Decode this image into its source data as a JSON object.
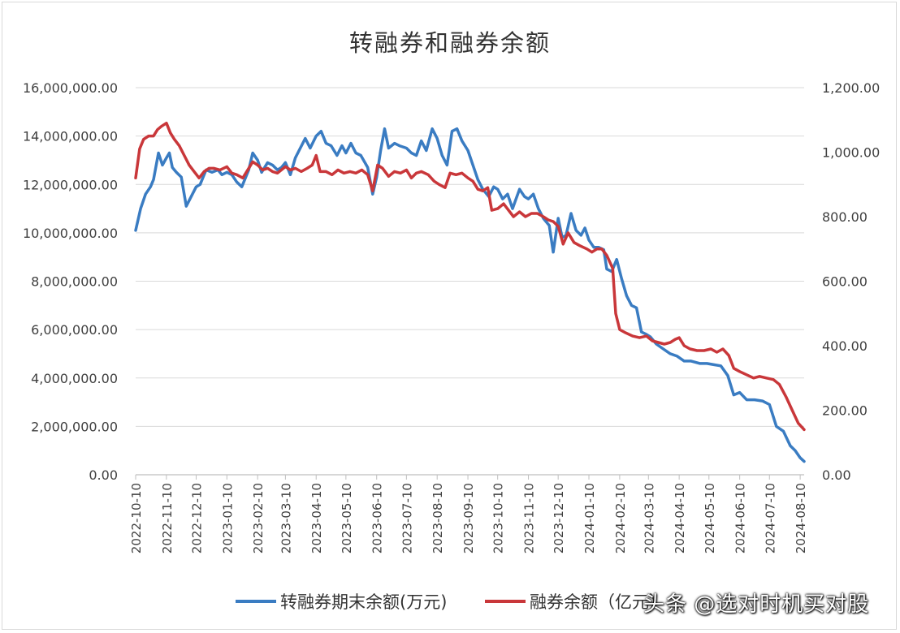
{
  "chart_data": {
    "type": "line",
    "title": "转融券和融券余额",
    "xlabel": "",
    "ylabel": "",
    "x_ticks": [
      "2022-10-10",
      "2022-11-10",
      "2022-12-10",
      "2023-01-10",
      "2023-02-10",
      "2023-03-10",
      "2023-04-10",
      "2023-05-10",
      "2023-06-10",
      "2023-07-10",
      "2023-08-10",
      "2023-09-10",
      "2023-10-10",
      "2023-11-10",
      "2023-12-10",
      "2024-01-10",
      "2024-02-10",
      "2024-03-10",
      "2024-04-10",
      "2024-05-10",
      "2024-06-10",
      "2024-07-10",
      "2024-08-10"
    ],
    "y_left": {
      "ylim": [
        0,
        16000000
      ],
      "ticks": [
        "0.00",
        "2,000,000.00",
        "4,000,000.00",
        "6,000,000.00",
        "8,000,000.00",
        "10,000,000.00",
        "12,000,000.00",
        "14,000,000.00",
        "16,000,000.00"
      ]
    },
    "y_right": {
      "ylim": [
        0,
        1200
      ],
      "ticks": [
        "0.00",
        "200.00",
        "400.00",
        "600.00",
        "800.00",
        "1,000.00",
        "1,200.00"
      ]
    },
    "grid": true,
    "legend_position": "bottom",
    "series": [
      {
        "name": "转融券期末余额(万元)",
        "axis": "left",
        "color": "#3a7cc2",
        "points": [
          [
            "2022-10-10",
            10100000
          ],
          [
            "2022-10-15",
            11000000
          ],
          [
            "2022-10-20",
            11600000
          ],
          [
            "2022-10-25",
            11900000
          ],
          [
            "2022-10-28",
            12200000
          ],
          [
            "2022-11-02",
            13300000
          ],
          [
            "2022-11-06",
            12800000
          ],
          [
            "2022-11-10",
            13100000
          ],
          [
            "2022-11-13",
            13300000
          ],
          [
            "2022-11-16",
            12700000
          ],
          [
            "2022-11-20",
            12500000
          ],
          [
            "2022-11-25",
            12300000
          ],
          [
            "2022-11-30",
            11100000
          ],
          [
            "2022-12-05",
            11500000
          ],
          [
            "2022-12-10",
            11900000
          ],
          [
            "2022-12-14",
            12000000
          ],
          [
            "2022-12-20",
            12600000
          ],
          [
            "2022-12-26",
            12500000
          ],
          [
            "2023-01-01",
            12600000
          ],
          [
            "2023-01-05",
            12400000
          ],
          [
            "2023-01-10",
            12500000
          ],
          [
            "2023-01-15",
            12400000
          ],
          [
            "2023-01-20",
            12100000
          ],
          [
            "2023-01-25",
            11900000
          ],
          [
            "2023-02-01",
            12600000
          ],
          [
            "2023-02-05",
            13300000
          ],
          [
            "2023-02-10",
            13000000
          ],
          [
            "2023-02-14",
            12500000
          ],
          [
            "2023-02-20",
            12900000
          ],
          [
            "2023-02-25",
            12800000
          ],
          [
            "2023-03-02",
            12600000
          ],
          [
            "2023-03-06",
            12700000
          ],
          [
            "2023-03-10",
            12900000
          ],
          [
            "2023-03-15",
            12400000
          ],
          [
            "2023-03-20",
            13100000
          ],
          [
            "2023-03-25",
            13500000
          ],
          [
            "2023-03-30",
            13900000
          ],
          [
            "2023-04-04",
            13500000
          ],
          [
            "2023-04-10",
            14000000
          ],
          [
            "2023-04-15",
            14200000
          ],
          [
            "2023-04-20",
            13700000
          ],
          [
            "2023-04-25",
            13600000
          ],
          [
            "2023-05-01",
            13200000
          ],
          [
            "2023-05-06",
            13600000
          ],
          [
            "2023-05-10",
            13300000
          ],
          [
            "2023-05-15",
            13700000
          ],
          [
            "2023-05-20",
            13300000
          ],
          [
            "2023-05-25",
            13200000
          ],
          [
            "2023-06-01",
            12700000
          ],
          [
            "2023-06-06",
            11600000
          ],
          [
            "2023-06-10",
            12300000
          ],
          [
            "2023-06-14",
            13400000
          ],
          [
            "2023-06-18",
            14300000
          ],
          [
            "2023-06-22",
            13500000
          ],
          [
            "2023-06-28",
            13700000
          ],
          [
            "2023-07-03",
            13600000
          ],
          [
            "2023-07-10",
            13500000
          ],
          [
            "2023-07-15",
            13300000
          ],
          [
            "2023-07-20",
            13200000
          ],
          [
            "2023-07-25",
            13800000
          ],
          [
            "2023-07-30",
            13400000
          ],
          [
            "2023-08-05",
            14300000
          ],
          [
            "2023-08-10",
            13900000
          ],
          [
            "2023-08-15",
            13200000
          ],
          [
            "2023-08-20",
            12800000
          ],
          [
            "2023-08-25",
            14200000
          ],
          [
            "2023-08-30",
            14300000
          ],
          [
            "2023-09-04",
            13800000
          ],
          [
            "2023-09-10",
            13400000
          ],
          [
            "2023-09-15",
            12800000
          ],
          [
            "2023-09-20",
            12200000
          ],
          [
            "2023-09-25",
            11800000
          ],
          [
            "2023-10-01",
            11500000
          ],
          [
            "2023-10-06",
            11900000
          ],
          [
            "2023-10-10",
            11800000
          ],
          [
            "2023-10-15",
            11400000
          ],
          [
            "2023-10-20",
            11600000
          ],
          [
            "2023-10-25",
            11000000
          ],
          [
            "2023-11-01",
            11800000
          ],
          [
            "2023-11-06",
            11500000
          ],
          [
            "2023-11-10",
            11400000
          ],
          [
            "2023-11-15",
            11600000
          ],
          [
            "2023-11-20",
            11000000
          ],
          [
            "2023-11-25",
            10600000
          ],
          [
            "2023-12-01",
            10300000
          ],
          [
            "2023-12-05",
            9200000
          ],
          [
            "2023-12-10",
            10600000
          ],
          [
            "2023-12-14",
            9800000
          ],
          [
            "2023-12-18",
            9900000
          ],
          [
            "2023-12-23",
            10800000
          ],
          [
            "2023-12-28",
            10100000
          ],
          [
            "2024-01-02",
            9900000
          ],
          [
            "2024-01-06",
            10200000
          ],
          [
            "2024-01-10",
            9700000
          ],
          [
            "2024-01-15",
            9400000
          ],
          [
            "2024-01-20",
            9400000
          ],
          [
            "2024-01-25",
            9300000
          ],
          [
            "2024-01-28",
            8500000
          ],
          [
            "2024-02-02",
            8400000
          ],
          [
            "2024-02-07",
            8900000
          ],
          [
            "2024-02-12",
            8100000
          ],
          [
            "2024-02-17",
            7400000
          ],
          [
            "2024-02-22",
            7000000
          ],
          [
            "2024-02-27",
            6900000
          ],
          [
            "2024-03-03",
            5900000
          ],
          [
            "2024-03-08",
            5800000
          ],
          [
            "2024-03-12",
            5700000
          ],
          [
            "2024-03-18",
            5400000
          ],
          [
            "2024-03-25",
            5200000
          ],
          [
            "2024-04-01",
            5000000
          ],
          [
            "2024-04-08",
            4900000
          ],
          [
            "2024-04-15",
            4700000
          ],
          [
            "2024-04-22",
            4700000
          ],
          [
            "2024-05-01",
            4600000
          ],
          [
            "2024-05-08",
            4600000
          ],
          [
            "2024-05-15",
            4550000
          ],
          [
            "2024-05-22",
            4500000
          ],
          [
            "2024-05-29",
            4100000
          ],
          [
            "2024-06-04",
            3300000
          ],
          [
            "2024-06-10",
            3400000
          ],
          [
            "2024-06-17",
            3100000
          ],
          [
            "2024-06-25",
            3100000
          ],
          [
            "2024-07-03",
            3050000
          ],
          [
            "2024-07-10",
            2900000
          ],
          [
            "2024-07-17",
            2000000
          ],
          [
            "2024-07-24",
            1800000
          ],
          [
            "2024-07-31",
            1200000
          ],
          [
            "2024-08-05",
            1000000
          ],
          [
            "2024-08-10",
            700000
          ],
          [
            "2024-08-14",
            550000
          ]
        ]
      },
      {
        "name": "融券余额（亿元）",
        "axis": "right",
        "color": "#c9373a",
        "points": [
          [
            "2022-10-10",
            920
          ],
          [
            "2022-10-14",
            1010
          ],
          [
            "2022-10-18",
            1040
          ],
          [
            "2022-10-23",
            1050
          ],
          [
            "2022-10-28",
            1050
          ],
          [
            "2022-11-01",
            1070
          ],
          [
            "2022-11-05",
            1080
          ],
          [
            "2022-11-10",
            1090
          ],
          [
            "2022-11-14",
            1060
          ],
          [
            "2022-11-18",
            1040
          ],
          [
            "2022-11-23",
            1020
          ],
          [
            "2022-11-28",
            990
          ],
          [
            "2022-12-03",
            960
          ],
          [
            "2022-12-08",
            940
          ],
          [
            "2022-12-13",
            920
          ],
          [
            "2022-12-18",
            940
          ],
          [
            "2022-12-23",
            950
          ],
          [
            "2022-12-28",
            950
          ],
          [
            "2023-01-03",
            945
          ],
          [
            "2023-01-10",
            955
          ],
          [
            "2023-01-15",
            935
          ],
          [
            "2023-01-20",
            930
          ],
          [
            "2023-01-26",
            920
          ],
          [
            "2023-02-01",
            950
          ],
          [
            "2023-02-05",
            970
          ],
          [
            "2023-02-10",
            960
          ],
          [
            "2023-02-15",
            945
          ],
          [
            "2023-02-20",
            950
          ],
          [
            "2023-02-25",
            940
          ],
          [
            "2023-03-02",
            935
          ],
          [
            "2023-03-10",
            955
          ],
          [
            "2023-03-15",
            945
          ],
          [
            "2023-03-20",
            950
          ],
          [
            "2023-03-26",
            940
          ],
          [
            "2023-04-01",
            950
          ],
          [
            "2023-04-06",
            960
          ],
          [
            "2023-04-10",
            990
          ],
          [
            "2023-04-14",
            940
          ],
          [
            "2023-04-20",
            940
          ],
          [
            "2023-04-26",
            930
          ],
          [
            "2023-05-02",
            945
          ],
          [
            "2023-05-08",
            935
          ],
          [
            "2023-05-14",
            940
          ],
          [
            "2023-05-20",
            935
          ],
          [
            "2023-05-26",
            945
          ],
          [
            "2023-06-01",
            930
          ],
          [
            "2023-06-06",
            880
          ],
          [
            "2023-06-11",
            960
          ],
          [
            "2023-06-16",
            950
          ],
          [
            "2023-06-22",
            925
          ],
          [
            "2023-06-28",
            940
          ],
          [
            "2023-07-04",
            935
          ],
          [
            "2023-07-10",
            945
          ],
          [
            "2023-07-15",
            920
          ],
          [
            "2023-07-20",
            935
          ],
          [
            "2023-07-25",
            940
          ],
          [
            "2023-08-01",
            930
          ],
          [
            "2023-08-07",
            910
          ],
          [
            "2023-08-12",
            900
          ],
          [
            "2023-08-18",
            890
          ],
          [
            "2023-08-23",
            935
          ],
          [
            "2023-08-29",
            930
          ],
          [
            "2023-09-04",
            935
          ],
          [
            "2023-09-10",
            920
          ],
          [
            "2023-09-15",
            910
          ],
          [
            "2023-09-20",
            885
          ],
          [
            "2023-09-25",
            880
          ],
          [
            "2023-09-30",
            890
          ],
          [
            "2023-10-04",
            820
          ],
          [
            "2023-10-10",
            825
          ],
          [
            "2023-10-16",
            840
          ],
          [
            "2023-10-21",
            820
          ],
          [
            "2023-10-26",
            800
          ],
          [
            "2023-11-01",
            815
          ],
          [
            "2023-11-07",
            800
          ],
          [
            "2023-11-13",
            810
          ],
          [
            "2023-11-19",
            810
          ],
          [
            "2023-11-25",
            800
          ],
          [
            "2023-11-30",
            790
          ],
          [
            "2023-12-05",
            785
          ],
          [
            "2023-12-10",
            770
          ],
          [
            "2023-12-15",
            715
          ],
          [
            "2023-12-20",
            750
          ],
          [
            "2023-12-26",
            720
          ],
          [
            "2024-01-01",
            710
          ],
          [
            "2024-01-08",
            700
          ],
          [
            "2024-01-13",
            690
          ],
          [
            "2024-01-18",
            700
          ],
          [
            "2024-01-23",
            700
          ],
          [
            "2024-01-28",
            680
          ],
          [
            "2024-02-03",
            640
          ],
          [
            "2024-02-06",
            500
          ],
          [
            "2024-02-10",
            450
          ],
          [
            "2024-02-16",
            440
          ],
          [
            "2024-02-23",
            430
          ],
          [
            "2024-03-01",
            425
          ],
          [
            "2024-03-08",
            430
          ],
          [
            "2024-03-14",
            415
          ],
          [
            "2024-03-20",
            410
          ],
          [
            "2024-03-26",
            405
          ],
          [
            "2024-04-01",
            410
          ],
          [
            "2024-04-06",
            420
          ],
          [
            "2024-04-10",
            425
          ],
          [
            "2024-04-15",
            400
          ],
          [
            "2024-04-21",
            390
          ],
          [
            "2024-04-28",
            385
          ],
          [
            "2024-05-05",
            385
          ],
          [
            "2024-05-12",
            390
          ],
          [
            "2024-05-18",
            380
          ],
          [
            "2024-05-24",
            390
          ],
          [
            "2024-05-30",
            370
          ],
          [
            "2024-06-04",
            330
          ],
          [
            "2024-06-10",
            320
          ],
          [
            "2024-06-17",
            310
          ],
          [
            "2024-06-24",
            300
          ],
          [
            "2024-06-30",
            305
          ],
          [
            "2024-07-07",
            300
          ],
          [
            "2024-07-14",
            295
          ],
          [
            "2024-07-20",
            280
          ],
          [
            "2024-07-27",
            240
          ],
          [
            "2024-08-02",
            200
          ],
          [
            "2024-08-08",
            160
          ],
          [
            "2024-08-14",
            140
          ]
        ]
      }
    ],
    "legend": {
      "items": [
        "转融券期末余额(万元)",
        "融券余额（亿元）"
      ]
    }
  },
  "watermark": {
    "platform": "头条",
    "account": "@选对时机买对股"
  }
}
